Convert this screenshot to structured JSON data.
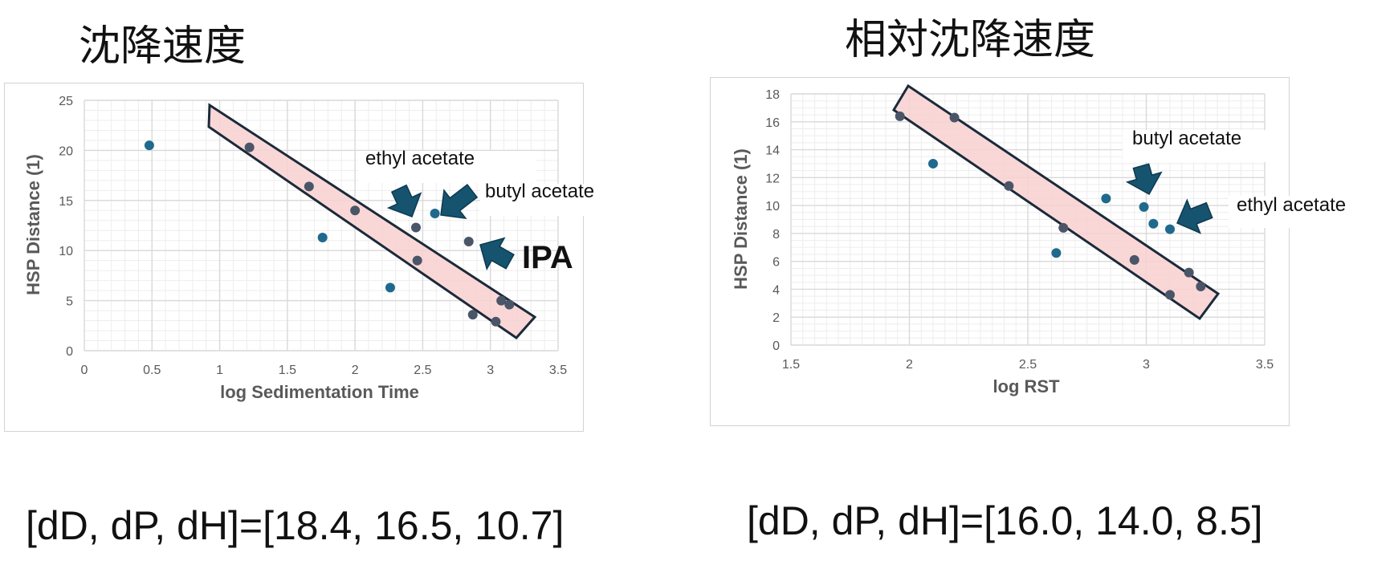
{
  "panels": [
    {
      "title": "沈降速度",
      "params": "[dD, dP, dH]=[18.4, 16.5, 10.7]"
    },
    {
      "title": "相対沈降速度",
      "params": "[dD, dP, dH]=[16.0, 14.0, 8.5]"
    }
  ],
  "colors": {
    "point": "#1f6a8c",
    "point_in_band": "#4a5568",
    "band_fill": "#f9d0d0",
    "band_stroke": "#1b2a3a",
    "arrow": "#16536e",
    "grid_major": "#d9d9d9",
    "grid_minor": "#ededed"
  },
  "chart_data": [
    {
      "type": "scatter",
      "title": "",
      "xlabel": "log Sedimentation Time",
      "ylabel": "HSP Distance (1)",
      "xlim": [
        0,
        3.5
      ],
      "ylim": [
        0,
        25
      ],
      "x_ticks": [
        "0",
        "0.5",
        "1",
        "1.5",
        "2",
        "2.5",
        "3",
        "3.5"
      ],
      "y_ticks": [
        "0",
        "5",
        "10",
        "15",
        "20",
        "25"
      ],
      "grid": true,
      "x": [
        0.48,
        1.22,
        1.66,
        1.76,
        2.0,
        2.26,
        2.45,
        2.46,
        2.59,
        2.84,
        2.87,
        3.04,
        3.08,
        3.14
      ],
      "y": [
        20.5,
        20.3,
        16.4,
        11.3,
        14.0,
        6.3,
        12.3,
        9.0,
        13.7,
        10.9,
        3.6,
        2.9,
        5.0,
        4.6
      ],
      "annotations": [
        {
          "text": "ethyl acetate",
          "x": 2.45,
          "y": 12.3
        },
        {
          "text": "butyl acetate",
          "x": 2.59,
          "y": 13.7
        },
        {
          "text": "IPA",
          "x": 2.84,
          "y": 10.9
        }
      ]
    },
    {
      "type": "scatter",
      "title": "",
      "xlabel": "log RST",
      "ylabel": "HSP Distance (1)",
      "xlim": [
        1.5,
        3.5
      ],
      "ylim": [
        0,
        18
      ],
      "x_ticks": [
        "1.5",
        "2",
        "2.5",
        "3",
        "3.5"
      ],
      "y_ticks": [
        "0",
        "2",
        "4",
        "6",
        "8",
        "10",
        "12",
        "14",
        "16",
        "18"
      ],
      "grid": true,
      "x": [
        1.96,
        2.1,
        2.19,
        2.42,
        2.62,
        2.65,
        2.83,
        2.95,
        2.99,
        3.03,
        3.1,
        3.1,
        3.18,
        3.23
      ],
      "y": [
        16.4,
        13.0,
        16.3,
        11.4,
        6.6,
        8.4,
        10.5,
        6.1,
        9.9,
        8.7,
        8.3,
        3.6,
        5.2,
        4.2
      ],
      "annotations": [
        {
          "text": "butyl acetate",
          "x": 2.99,
          "y": 9.9
        },
        {
          "text": "ethyl acetate",
          "x": 3.1,
          "y": 8.3
        }
      ]
    }
  ]
}
